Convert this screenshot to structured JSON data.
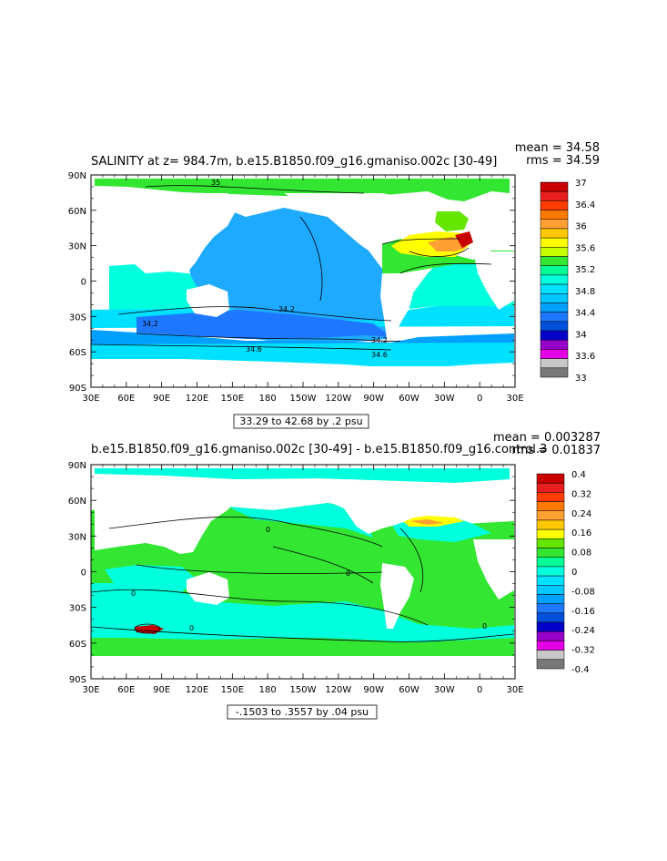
{
  "chart_data": [
    {
      "type": "heatmap",
      "title": "SALINITY at z= 984.7m, b.e15.B1850.f09_g16.gmaniso.002c [30-49]",
      "stats": {
        "mean": "mean = 34.58",
        "rms": "rms = 34.59"
      },
      "range_label": "33.29 to 42.68 by .2 psu",
      "x_ticks": [
        "30E",
        "60E",
        "90E",
        "120E",
        "150E",
        "180",
        "150W",
        "120W",
        "90W",
        "60W",
        "30W",
        "0",
        "30E"
      ],
      "y_ticks": [
        "90N",
        "60N",
        "30N",
        "0",
        "30S",
        "60S",
        "90S"
      ],
      "colorbar": {
        "labels": [
          "37",
          "36.4",
          "36",
          "35.6",
          "35.2",
          "34.8",
          "34.4",
          "34",
          "33.6",
          "33"
        ],
        "colors": [
          "#c80000",
          "#e61e1e",
          "#ff3c00",
          "#ff7800",
          "#ffa032",
          "#ffc800",
          "#ffff00",
          "#c8ff00",
          "#32e632",
          "#00ff96",
          "#00ffdc",
          "#00e1ff",
          "#00c8ff",
          "#00a0ff",
          "#1e78ff",
          "#0050dc",
          "#0000c8",
          "#9600c8",
          "#e600e6",
          "#c8c8c8",
          "#787878"
        ]
      },
      "contour_labels": [
        "35",
        "34.2",
        "34.2",
        "34.6",
        "34.6",
        "34.2"
      ]
    },
    {
      "type": "heatmap",
      "title": "b.e15.B1850.f09_g16.gmaniso.002c [30-49] - b.e15.B1850.f09_g16.control.3",
      "stats": {
        "mean": "mean = 0.003287",
        "rms": "rms = 0.01837"
      },
      "range_label": "-.1503 to .3557 by .04 psu",
      "x_ticks": [
        "30E",
        "60E",
        "90E",
        "120E",
        "150E",
        "180",
        "150W",
        "120W",
        "90W",
        "60W",
        "30W",
        "0",
        "30E"
      ],
      "y_ticks": [
        "90N",
        "60N",
        "30N",
        "0",
        "30S",
        "60S",
        "90S"
      ],
      "colorbar": {
        "labels": [
          "0.4",
          "0.32",
          "0.24",
          "0.16",
          "0.08",
          "0",
          "-0.08",
          "-0.16",
          "-0.24",
          "-0.32",
          "-0.4"
        ],
        "colors": [
          "#c80000",
          "#e61e1e",
          "#ff3c00",
          "#ff7800",
          "#ffa032",
          "#ffc800",
          "#ffff00",
          "#64e600",
          "#32e632",
          "#00ff96",
          "#00ffdc",
          "#00e1ff",
          "#00c8ff",
          "#00a0ff",
          "#1e78ff",
          "#0050dc",
          "#0000c8",
          "#9600c8",
          "#e600e6",
          "#c8c8c8",
          "#787878"
        ]
      },
      "contour_labels": [
        "0",
        "0",
        "0",
        "0",
        "0"
      ]
    }
  ]
}
